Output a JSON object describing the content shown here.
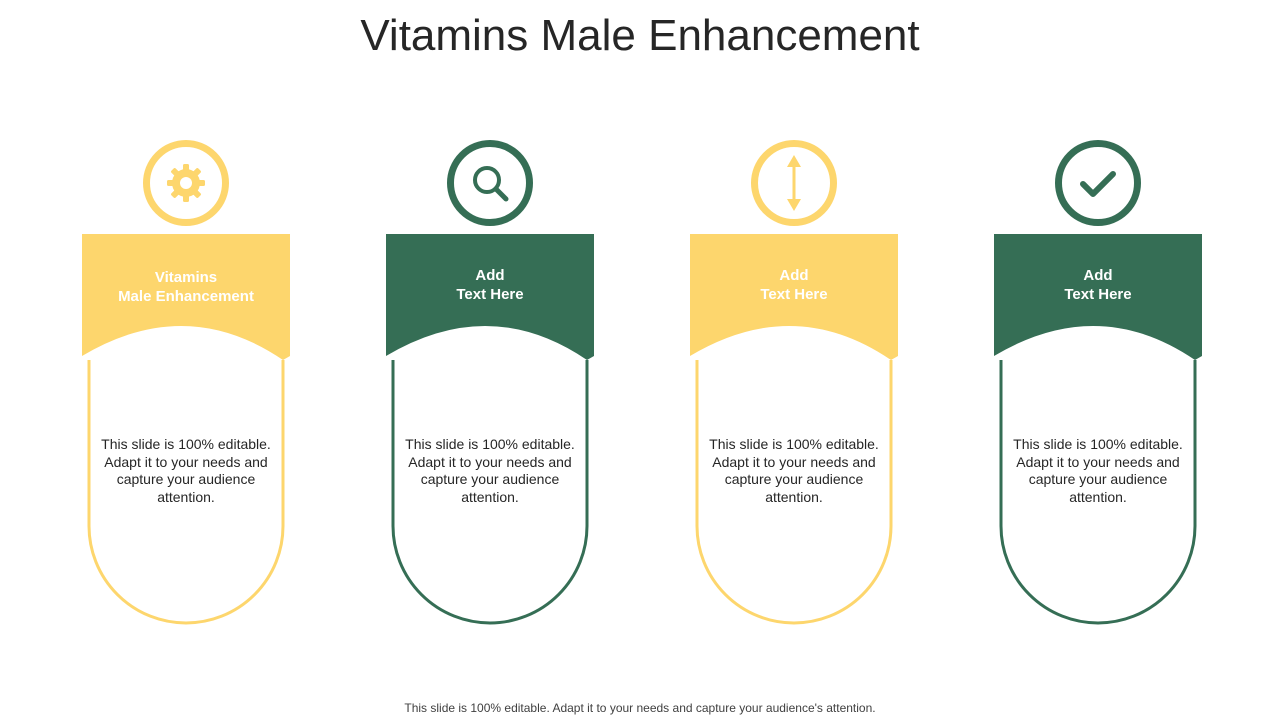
{
  "title": "Vitamins Male Enhancement",
  "colors": {
    "yellow": "#fdd66d",
    "green": "#356e55",
    "text": "#262626"
  },
  "cards": [
    {
      "icon": "gear-icon",
      "color": "yellow",
      "heading_line1": "Vitamins",
      "heading_line2": "Male Enhancement",
      "body": "This slide is 100% editable. Adapt it to your needs and capture your audience attention."
    },
    {
      "icon": "magnifier-icon",
      "color": "green",
      "heading_line1": "Add",
      "heading_line2": "Text Here",
      "body": "This slide is 100% editable. Adapt it to your needs and capture your audience attention."
    },
    {
      "icon": "vertical-arrows-icon",
      "color": "yellow",
      "heading_line1": "Add",
      "heading_line2": "Text Here",
      "body": "This slide is 100% editable. Adapt it to your needs and capture your audience attention."
    },
    {
      "icon": "checkmark-icon",
      "color": "green",
      "heading_line1": "Add",
      "heading_line2": "Text Here",
      "body": "This slide is 100% editable. Adapt it to your needs and capture your audience attention."
    }
  ],
  "footer": "This slide is 100% editable. Adapt it to your needs and capture your audience's attention."
}
